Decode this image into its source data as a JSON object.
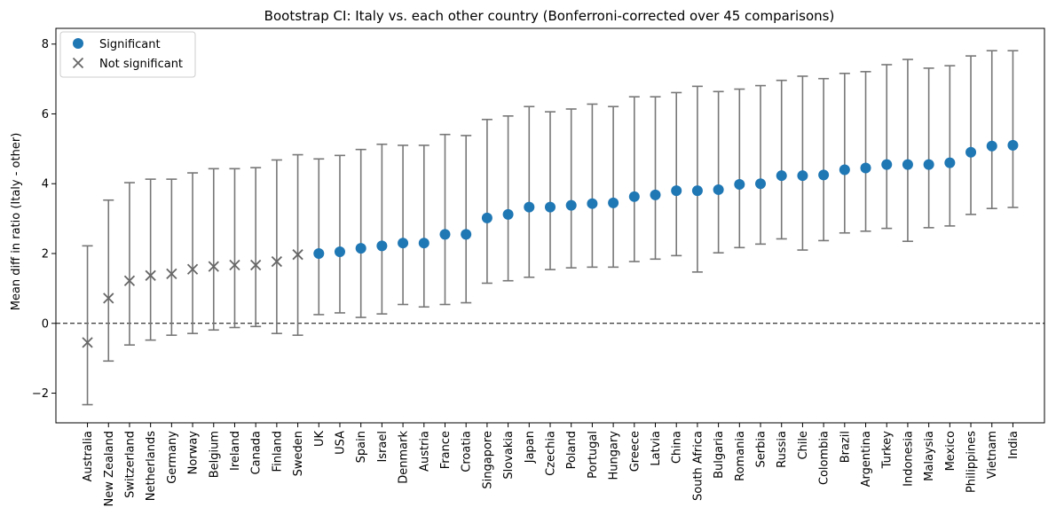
{
  "chart_data": {
    "type": "scatter",
    "title": "Bootstrap CI: Italy vs. each other country (Bonferroni-corrected over 45 comparisons)",
    "xlabel": "",
    "ylabel": "Mean diff in ratio (Italy - other)",
    "ylim": [
      -2.85,
      8.45
    ],
    "yticks": [
      -2,
      0,
      2,
      4,
      6,
      8
    ],
    "ytick_labels": [
      "−2",
      "0",
      "2",
      "4",
      "6",
      "8"
    ],
    "reference_line": 0,
    "legend": {
      "placement": "top-left",
      "entries": [
        {
          "label": "Significant",
          "marker": "circle"
        },
        {
          "label": "Not significant",
          "marker": "x"
        }
      ]
    },
    "colors": {
      "significant": "#1f77b4",
      "not_significant": "#666666",
      "errorbar": "#777777"
    },
    "points": [
      {
        "country": "Australia",
        "mean": -0.55,
        "lo": -2.33,
        "hi": 2.22,
        "significant": false
      },
      {
        "country": "New Zealand",
        "mean": 0.72,
        "lo": -1.08,
        "hi": 3.53,
        "significant": false
      },
      {
        "country": "Switzerland",
        "mean": 1.22,
        "lo": -0.62,
        "hi": 4.03,
        "significant": false
      },
      {
        "country": "Netherlands",
        "mean": 1.37,
        "lo": -0.48,
        "hi": 4.13,
        "significant": false
      },
      {
        "country": "Germany",
        "mean": 1.42,
        "lo": -0.34,
        "hi": 4.13,
        "significant": false
      },
      {
        "country": "Norway",
        "mean": 1.55,
        "lo": -0.29,
        "hi": 4.31,
        "significant": false
      },
      {
        "country": "Belgium",
        "mean": 1.63,
        "lo": -0.19,
        "hi": 4.43,
        "significant": false
      },
      {
        "country": "Ireland",
        "mean": 1.67,
        "lo": -0.12,
        "hi": 4.43,
        "significant": false
      },
      {
        "country": "Canada",
        "mean": 1.67,
        "lo": -0.09,
        "hi": 4.46,
        "significant": false
      },
      {
        "country": "Finland",
        "mean": 1.77,
        "lo": -0.29,
        "hi": 4.68,
        "significant": false
      },
      {
        "country": "Sweden",
        "mean": 1.97,
        "lo": -0.34,
        "hi": 4.83,
        "significant": false
      },
      {
        "country": "UK",
        "mean": 2.0,
        "lo": 0.25,
        "hi": 4.71,
        "significant": true
      },
      {
        "country": "USA",
        "mean": 2.05,
        "lo": 0.3,
        "hi": 4.81,
        "significant": true
      },
      {
        "country": "Spain",
        "mean": 2.15,
        "lo": 0.17,
        "hi": 4.98,
        "significant": true
      },
      {
        "country": "Israel",
        "mean": 2.22,
        "lo": 0.27,
        "hi": 5.13,
        "significant": true
      },
      {
        "country": "Denmark",
        "mean": 2.3,
        "lo": 0.54,
        "hi": 5.1,
        "significant": true
      },
      {
        "country": "Austria",
        "mean": 2.3,
        "lo": 0.47,
        "hi": 5.1,
        "significant": true
      },
      {
        "country": "France",
        "mean": 2.55,
        "lo": 0.54,
        "hi": 5.41,
        "significant": true
      },
      {
        "country": "Croatia",
        "mean": 2.55,
        "lo": 0.59,
        "hi": 5.38,
        "significant": true
      },
      {
        "country": "Singapore",
        "mean": 3.02,
        "lo": 1.15,
        "hi": 5.84,
        "significant": true
      },
      {
        "country": "Slovakia",
        "mean": 3.12,
        "lo": 1.22,
        "hi": 5.94,
        "significant": true
      },
      {
        "country": "Japan",
        "mean": 3.33,
        "lo": 1.32,
        "hi": 6.21,
        "significant": true
      },
      {
        "country": "Czechia",
        "mean": 3.33,
        "lo": 1.54,
        "hi": 6.06,
        "significant": true
      },
      {
        "country": "Poland",
        "mean": 3.38,
        "lo": 1.59,
        "hi": 6.14,
        "significant": true
      },
      {
        "country": "Portugal",
        "mean": 3.43,
        "lo": 1.61,
        "hi": 6.28,
        "significant": true
      },
      {
        "country": "Hungary",
        "mean": 3.45,
        "lo": 1.61,
        "hi": 6.21,
        "significant": true
      },
      {
        "country": "Greece",
        "mean": 3.63,
        "lo": 1.77,
        "hi": 6.49,
        "significant": true
      },
      {
        "country": "Latvia",
        "mean": 3.68,
        "lo": 1.84,
        "hi": 6.49,
        "significant": true
      },
      {
        "country": "China",
        "mean": 3.8,
        "lo": 1.94,
        "hi": 6.61,
        "significant": true
      },
      {
        "country": "South Africa",
        "mean": 3.8,
        "lo": 1.47,
        "hi": 6.79,
        "significant": true
      },
      {
        "country": "Bulgaria",
        "mean": 3.83,
        "lo": 2.02,
        "hi": 6.64,
        "significant": true
      },
      {
        "country": "Romania",
        "mean": 3.98,
        "lo": 2.17,
        "hi": 6.71,
        "significant": true
      },
      {
        "country": "Serbia",
        "mean": 4.0,
        "lo": 2.27,
        "hi": 6.81,
        "significant": true
      },
      {
        "country": "Russia",
        "mean": 4.23,
        "lo": 2.42,
        "hi": 6.96,
        "significant": true
      },
      {
        "country": "Chile",
        "mean": 4.23,
        "lo": 2.1,
        "hi": 7.08,
        "significant": true
      },
      {
        "country": "Colombia",
        "mean": 4.25,
        "lo": 2.37,
        "hi": 7.01,
        "significant": true
      },
      {
        "country": "Brazil",
        "mean": 4.4,
        "lo": 2.59,
        "hi": 7.16,
        "significant": true
      },
      {
        "country": "Argentina",
        "mean": 4.45,
        "lo": 2.64,
        "hi": 7.21,
        "significant": true
      },
      {
        "country": "Turkey",
        "mean": 4.55,
        "lo": 2.72,
        "hi": 7.41,
        "significant": true
      },
      {
        "country": "Indonesia",
        "mean": 4.55,
        "lo": 2.35,
        "hi": 7.56,
        "significant": true
      },
      {
        "country": "Malaysia",
        "mean": 4.55,
        "lo": 2.74,
        "hi": 7.31,
        "significant": true
      },
      {
        "country": "Mexico",
        "mean": 4.6,
        "lo": 2.79,
        "hi": 7.38,
        "significant": true
      },
      {
        "country": "Philippines",
        "mean": 4.9,
        "lo": 3.12,
        "hi": 7.66,
        "significant": true
      },
      {
        "country": "Vietnam",
        "mean": 5.08,
        "lo": 3.29,
        "hi": 7.81,
        "significant": true
      },
      {
        "country": "India",
        "mean": 5.1,
        "lo": 3.32,
        "hi": 7.81,
        "significant": true
      }
    ]
  }
}
